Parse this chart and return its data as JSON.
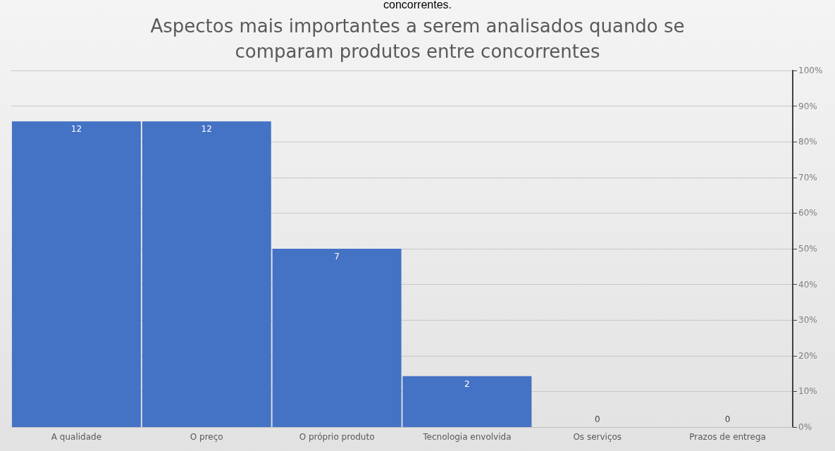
{
  "chart_data": {
    "type": "bar",
    "title": "Aspectos mais importantes a serem analisados quando se\ncomparam produtos entre concorrentes",
    "annotations": [
      "concorrentes."
    ],
    "categories": [
      "A qualidade",
      "O preço",
      "O próprio produto",
      "Tecnologia envolvida",
      "Os serviços",
      "Prazos de entrega"
    ],
    "series": [
      {
        "color": "#4472c4",
        "values": [
          12,
          12,
          7,
          2,
          0,
          0
        ]
      }
    ],
    "ylim": [
      0,
      14
    ],
    "y2lim": [
      0,
      100
    ],
    "y2ticks": [
      {
        "value": 0,
        "label": "0%"
      },
      {
        "value": 10,
        "label": "10%"
      },
      {
        "value": 20,
        "label": "20%"
      },
      {
        "value": 30,
        "label": "30%"
      },
      {
        "value": 40,
        "label": "40%"
      },
      {
        "value": 50,
        "label": "50%"
      },
      {
        "value": 60,
        "label": "60%"
      },
      {
        "value": 70,
        "label": "70%"
      },
      {
        "value": 80,
        "label": "80%"
      },
      {
        "value": 90,
        "label": "90%"
      },
      {
        "value": 100,
        "label": "100%"
      }
    ],
    "tick_labels": "x,y2",
    "data_labels": true,
    "grid": "y"
  }
}
